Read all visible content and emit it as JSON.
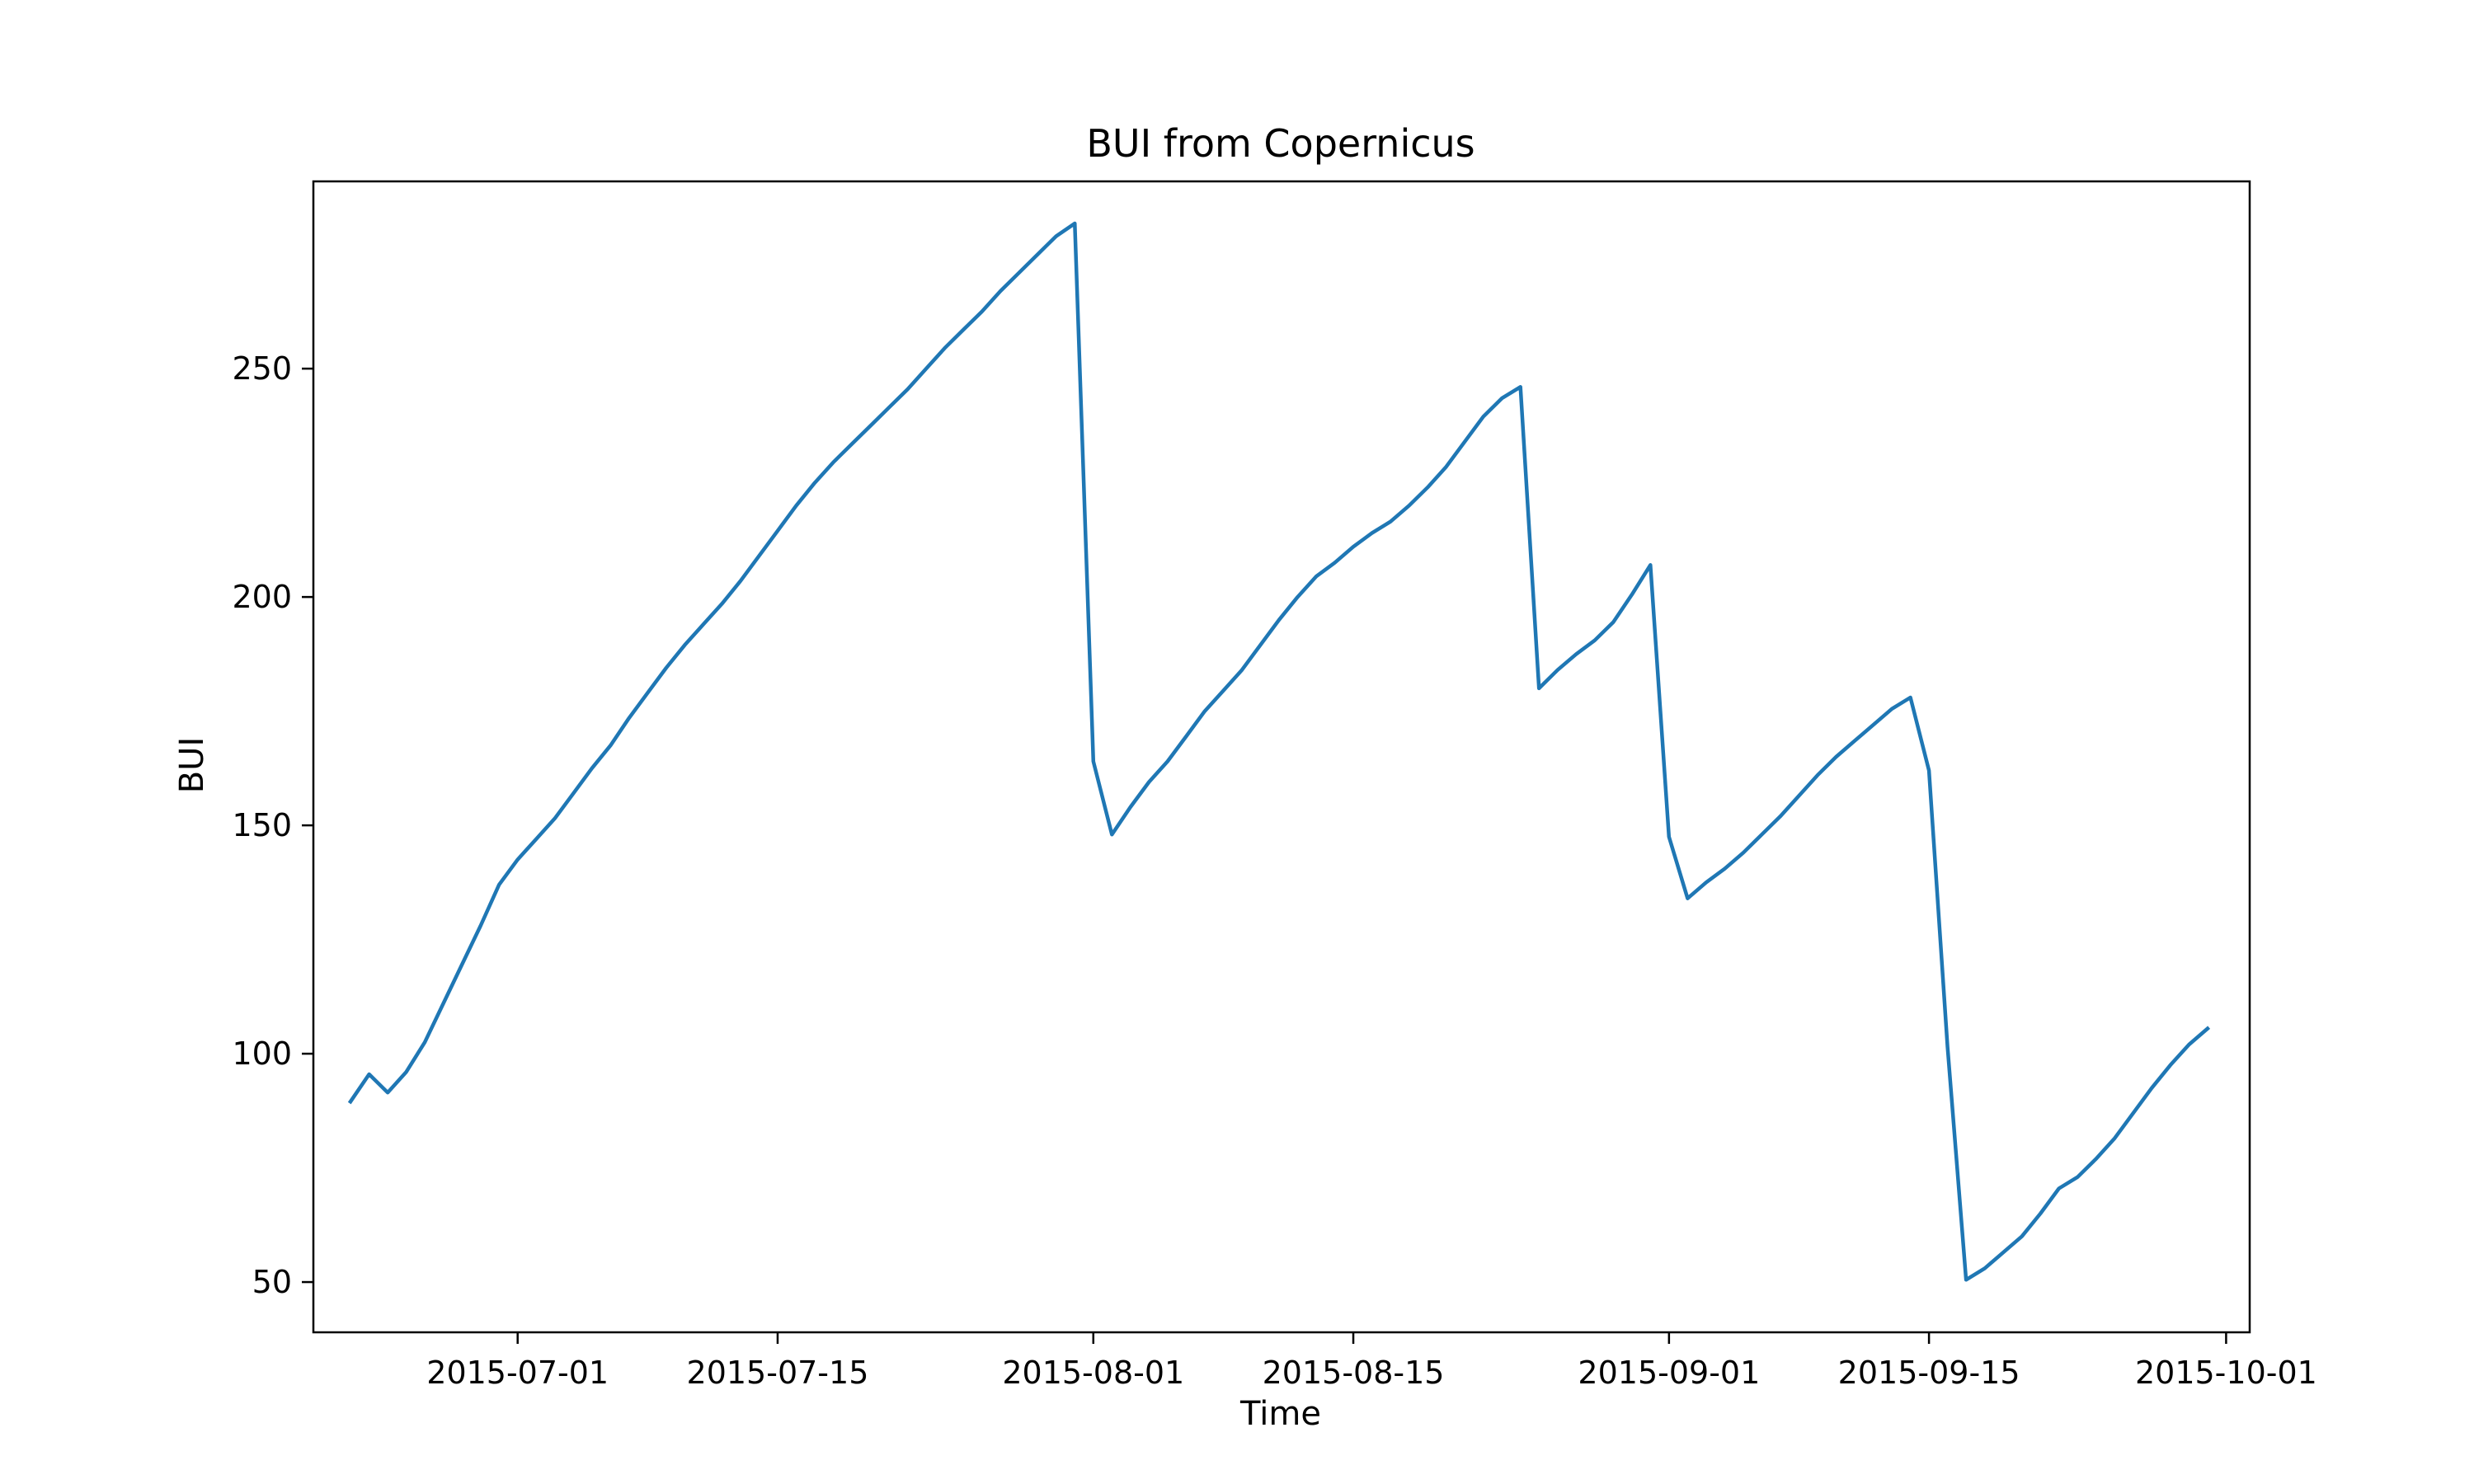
{
  "chart_data": {
    "type": "line",
    "title": "BUI from Copernicus",
    "xlabel": "Time",
    "ylabel": "BUI",
    "x_axis_type": "date",
    "xlim": [
      "2015-06-20",
      "2015-10-01"
    ],
    "ylim": [
      39,
      291
    ],
    "grid": false,
    "legend": "none",
    "x_ticks": [
      "2015-07-01",
      "2015-07-15",
      "2015-08-01",
      "2015-08-15",
      "2015-09-01",
      "2015-09-15",
      "2015-10-01"
    ],
    "y_ticks": [
      50,
      100,
      150,
      200,
      250
    ],
    "series": [
      {
        "name": "",
        "color": "#1f77b4",
        "x": [
          "2015-06-22",
          "2015-06-23",
          "2015-06-24",
          "2015-06-25",
          "2015-06-26",
          "2015-06-27",
          "2015-06-28",
          "2015-06-29",
          "2015-06-30",
          "2015-07-01",
          "2015-07-02",
          "2015-07-03",
          "2015-07-04",
          "2015-07-05",
          "2015-07-06",
          "2015-07-07",
          "2015-07-08",
          "2015-07-09",
          "2015-07-10",
          "2015-07-11",
          "2015-07-12",
          "2015-07-13",
          "2015-07-14",
          "2015-07-15",
          "2015-07-16",
          "2015-07-17",
          "2015-07-18",
          "2015-07-19",
          "2015-07-20",
          "2015-07-21",
          "2015-07-22",
          "2015-07-23",
          "2015-07-24",
          "2015-07-25",
          "2015-07-26",
          "2015-07-27",
          "2015-07-28",
          "2015-07-29",
          "2015-07-30",
          "2015-07-31",
          "2015-08-01",
          "2015-08-02",
          "2015-08-03",
          "2015-08-04",
          "2015-08-05",
          "2015-08-06",
          "2015-08-07",
          "2015-08-08",
          "2015-08-09",
          "2015-08-10",
          "2015-08-11",
          "2015-08-12",
          "2015-08-13",
          "2015-08-14",
          "2015-08-15",
          "2015-08-16",
          "2015-08-17",
          "2015-08-18",
          "2015-08-19",
          "2015-08-20",
          "2015-08-21",
          "2015-08-22",
          "2015-08-23",
          "2015-08-24",
          "2015-08-25",
          "2015-08-26",
          "2015-08-27",
          "2015-08-28",
          "2015-08-29",
          "2015-08-30",
          "2015-08-31",
          "2015-09-01",
          "2015-09-02",
          "2015-09-03",
          "2015-09-04",
          "2015-09-05",
          "2015-09-06",
          "2015-09-07",
          "2015-09-08",
          "2015-09-09",
          "2015-09-10",
          "2015-09-11",
          "2015-09-12",
          "2015-09-13",
          "2015-09-14",
          "2015-09-15",
          "2015-09-16",
          "2015-09-17",
          "2015-09-18",
          "2015-09-19",
          "2015-09-20",
          "2015-09-21",
          "2015-09-22",
          "2015-09-23",
          "2015-09-24",
          "2015-09-25",
          "2015-09-26",
          "2015-09-27",
          "2015-09-28",
          "2015-09-29",
          "2015-09-30"
        ],
        "y": [
          89.5,
          95.5,
          91.5,
          96.0,
          102.5,
          111.0,
          119.5,
          128.0,
          137.0,
          142.5,
          147.0,
          151.5,
          157.0,
          162.5,
          167.5,
          173.5,
          179.0,
          184.5,
          189.5,
          194.0,
          198.5,
          203.5,
          209.0,
          214.5,
          220.0,
          225.0,
          229.5,
          233.5,
          237.5,
          241.5,
          245.5,
          250.0,
          254.5,
          258.5,
          262.5,
          267.0,
          271.0,
          275.0,
          279.0,
          281.8,
          164.0,
          148.0,
          154.0,
          159.5,
          164.0,
          169.5,
          175.0,
          179.5,
          184.0,
          189.5,
          195.0,
          200.0,
          204.5,
          207.5,
          211.0,
          214.0,
          216.5,
          220.0,
          224.0,
          228.5,
          234.0,
          239.5,
          243.5,
          246.0,
          180.0,
          184.0,
          187.5,
          190.5,
          194.5,
          200.5,
          207.0,
          147.5,
          134.0,
          137.5,
          140.5,
          144.0,
          148.0,
          152.0,
          156.5,
          161.0,
          165.0,
          168.5,
          172.0,
          175.5,
          178.0,
          162.0,
          101.5,
          50.5,
          53.0,
          56.5,
          60.0,
          65.0,
          70.5,
          73.0,
          77.0,
          81.5,
          87.0,
          92.5,
          97.5,
          102.0,
          105.5
        ]
      }
    ]
  }
}
